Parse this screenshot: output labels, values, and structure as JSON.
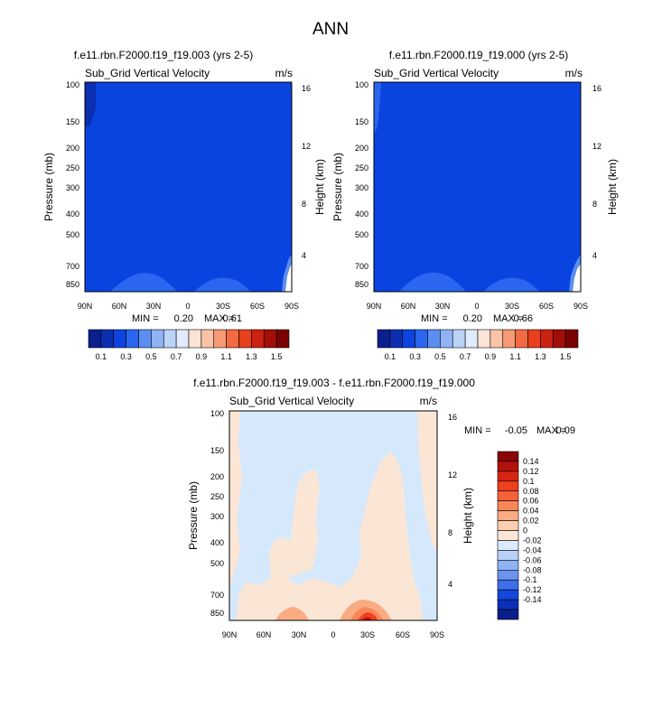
{
  "page_title": "ANN",
  "chart_data": [
    {
      "type": "heatmap",
      "title": "f.e11.rbn.F2000.f19_f19.003 (yrs 2-5)",
      "subtitle_left": "Sub_Grid Vertical Velocity",
      "subtitle_right": "m/s",
      "xlabel": "",
      "ylabel_left": "Pressure (mb)",
      "ylabel_right": "Height (km)",
      "x_ticks": [
        "90N",
        "60N",
        "30N",
        "0",
        "30S",
        "60S",
        "90S"
      ],
      "y_ticks_left": [
        "100",
        "150",
        "200",
        "250",
        "300",
        "400",
        "500",
        "700",
        "850"
      ],
      "y_ticks_right": [
        "16",
        "12",
        "8",
        "4"
      ],
      "stats": {
        "min_label": "MIN =",
        "min": "0.20",
        "max_label": "MAX =",
        "max": "0.61"
      },
      "background_color": "#0a44e0"
    },
    {
      "type": "heatmap",
      "title": "f.e11.rbn.F2000.f19_f19.000 (yrs 2-5)",
      "subtitle_left": "Sub_Grid Vertical Velocity",
      "subtitle_right": "m/s",
      "xlabel": "",
      "ylabel_left": "Pressure (mb)",
      "ylabel_right": "Height (km)",
      "x_ticks": [
        "90N",
        "60N",
        "30N",
        "0",
        "30S",
        "60S",
        "90S"
      ],
      "y_ticks_left": [
        "100",
        "150",
        "200",
        "250",
        "300",
        "400",
        "500",
        "700",
        "850"
      ],
      "y_ticks_right": [
        "16",
        "12",
        "8",
        "4"
      ],
      "stats": {
        "min_label": "MIN =",
        "min": "0.20",
        "max_label": "MAX =",
        "max": "0.66"
      },
      "background_color": "#0a44e0"
    },
    {
      "type": "heatmap",
      "title": "f.e11.rbn.F2000.f19_f19.003 - f.e11.rbn.F2000.f19_f19.000",
      "subtitle_left": "Sub_Grid Vertical Velocity",
      "subtitle_right": "m/s",
      "xlabel": "",
      "ylabel_left": "Pressure (mb)",
      "ylabel_right": "Height (km)",
      "x_ticks": [
        "90N",
        "60N",
        "30N",
        "0",
        "30S",
        "60S",
        "90S"
      ],
      "y_ticks_left": [
        "100",
        "150",
        "200",
        "250",
        "300",
        "400",
        "500",
        "700",
        "850"
      ],
      "y_ticks_right": [
        "16",
        "12",
        "8",
        "4"
      ],
      "stats": {
        "min_label": "MIN =",
        "min": "-0.05",
        "max_label": "MAX =",
        "max": "0.09"
      },
      "background_color": "#d6e8fb"
    }
  ],
  "colorbar_top": {
    "labels": [
      "0.1",
      "0.3",
      "0.5",
      "0.7",
      "0.9",
      "1.1",
      "1.3",
      "1.5"
    ],
    "colors": [
      "#0a1f8c",
      "#0b2fb0",
      "#0b44e0",
      "#2a66f0",
      "#5c8ef2",
      "#8fb3f5",
      "#bcd3f8",
      "#e0ecfb",
      "#fbe4d5",
      "#f9c3a7",
      "#f79a76",
      "#f26a43",
      "#e8401c",
      "#cc2212",
      "#a30e08",
      "#7a0203"
    ]
  },
  "colorbar_diff": {
    "labels": [
      "0.14",
      "0.12",
      "0.1",
      "0.08",
      "0.06",
      "0.04",
      "0.02",
      "0",
      "-0.02",
      "-0.04",
      "-0.06",
      "-0.08",
      "-0.1",
      "-0.12",
      "-0.14"
    ],
    "colors": [
      "#8a0606",
      "#b3130c",
      "#d62514",
      "#ee3f1e",
      "#f5623a",
      "#f78759",
      "#f9ab83",
      "#fbcfb0",
      "#fbe6d6",
      "#dbe9fb",
      "#b7d1f7",
      "#8fb3f5",
      "#6a94f0",
      "#3f6eea",
      "#1547dc",
      "#0c2fb8",
      "#0a1f8c"
    ]
  }
}
